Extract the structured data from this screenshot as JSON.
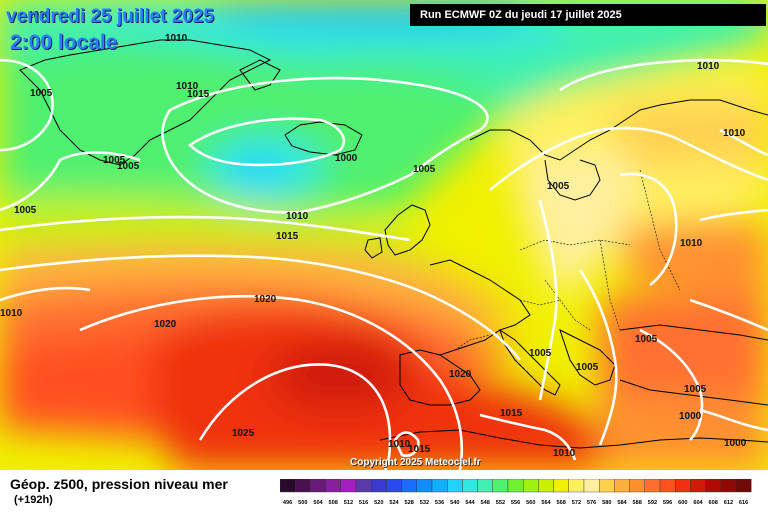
{
  "header": {
    "date": "vendredi 25 juillet 2025",
    "time": "2:00 locale",
    "run": "Run ECMWF 0Z du jeudi 17 juillet 2025"
  },
  "footer": {
    "parameter": "Géop. z500, pression niveau mer",
    "lead": "(+192h)",
    "copyright": "Copyright 2025 Meteociel.fr"
  },
  "legend": {
    "values": [
      "496",
      "500",
      "504",
      "508",
      "512",
      "516",
      "520",
      "524",
      "528",
      "532",
      "536",
      "540",
      "544",
      "548",
      "552",
      "556",
      "560",
      "564",
      "568",
      "572",
      "576",
      "580",
      "584",
      "588",
      "592",
      "596",
      "600",
      "604",
      "608",
      "612",
      "616"
    ],
    "colors": [
      "#2a0a2a",
      "#4a1050",
      "#6a1a78",
      "#8a1ea0",
      "#a51ec0",
      "#5a3aa8",
      "#3a3ad0",
      "#2a4af0",
      "#1a6cff",
      "#148cff",
      "#10b0ff",
      "#20d4ff",
      "#30e8e0",
      "#40f0b0",
      "#50f070",
      "#70f030",
      "#a0f010",
      "#c8f000",
      "#f0f000",
      "#fff060",
      "#fff0a0",
      "#ffd050",
      "#ffb040",
      "#ff9030",
      "#ff7030",
      "#ff5020",
      "#f03010",
      "#d01a08",
      "#b00a05",
      "#900a05",
      "#700a05"
    ]
  },
  "isobars": {
    "labels": [
      "1010",
      "1010",
      "1005",
      "1015",
      "1010",
      "1005",
      "1005",
      "1000",
      "1005",
      "1005",
      "1010",
      "1015",
      "1010",
      "1005",
      "1010",
      "1010",
      "1020",
      "1020",
      "1005",
      "1005",
      "1005",
      "1020",
      "1005",
      "1015",
      "1000",
      "1025",
      "1010",
      "1015",
      "1010",
      "1000"
    ]
  }
}
